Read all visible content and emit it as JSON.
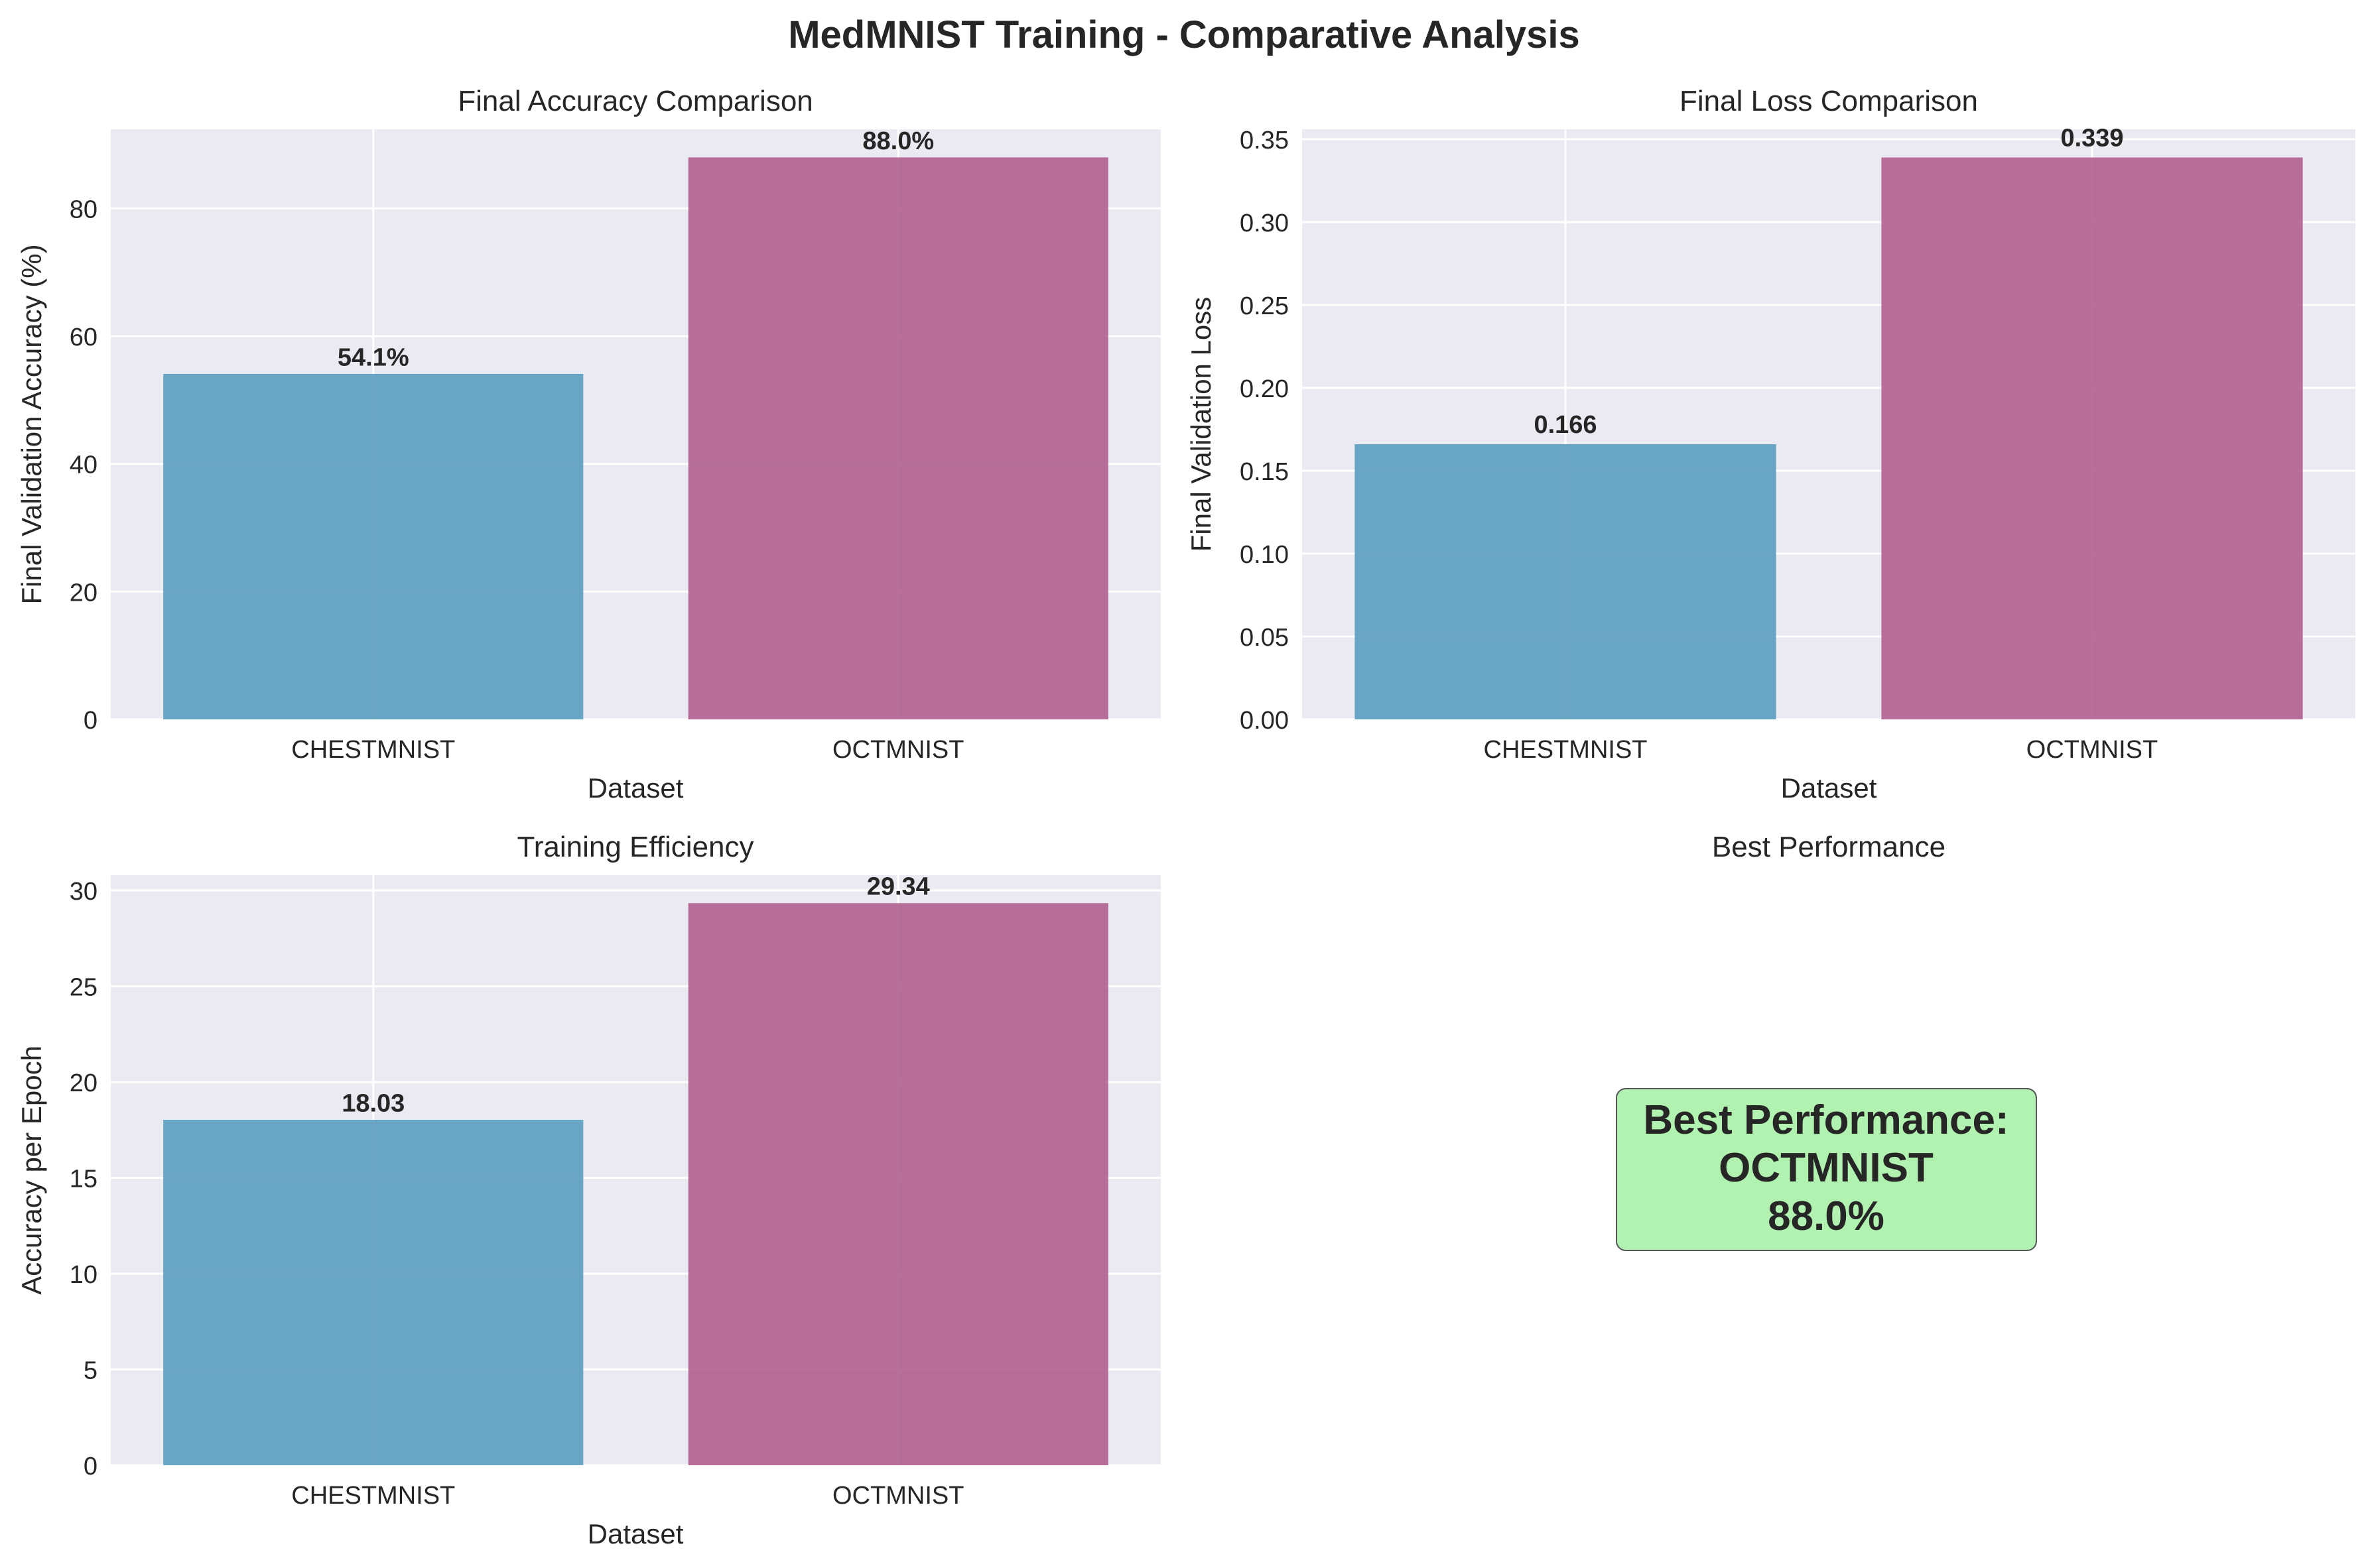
{
  "figure": {
    "title": "MedMNIST Training - Comparative Analysis"
  },
  "colors": {
    "panel_bg": "#EAEAF2",
    "grid": "#FFFFFF",
    "series_chestmnist": "#5B9DBF",
    "series_octmnist": "#B0608F",
    "callout_bg": "#B1F2B1",
    "callout_border": "#555555"
  },
  "chart_data": [
    {
      "type": "bar",
      "title": "Final Accuracy Comparison",
      "xlabel": "Dataset",
      "ylabel": "Final Validation Accuracy (%)",
      "categories": [
        "CHESTMNIST",
        "OCTMNIST"
      ],
      "values": [
        54.1,
        88.0
      ],
      "value_labels": [
        "54.1%",
        "88.0%"
      ],
      "ylim": [
        0,
        92.4
      ],
      "yticks": [
        0,
        20,
        40,
        60,
        80
      ],
      "ytick_labels": [
        "0",
        "20",
        "40",
        "60",
        "80"
      ],
      "grid": true
    },
    {
      "type": "bar",
      "title": "Final Loss Comparison",
      "xlabel": "Dataset",
      "ylabel": "Final Validation Loss",
      "categories": [
        "CHESTMNIST",
        "OCTMNIST"
      ],
      "values": [
        0.166,
        0.339
      ],
      "value_labels": [
        "0.166",
        "0.339"
      ],
      "ylim": [
        0,
        0.356
      ],
      "yticks": [
        0,
        0.05,
        0.1,
        0.15,
        0.2,
        0.25,
        0.3,
        0.35
      ],
      "ytick_labels": [
        "0.00",
        "0.05",
        "0.10",
        "0.15",
        "0.20",
        "0.25",
        "0.30",
        "0.35"
      ],
      "grid": true
    },
    {
      "type": "bar",
      "title": "Training Efficiency",
      "xlabel": "Dataset",
      "ylabel": "Accuracy per Epoch",
      "categories": [
        "CHESTMNIST",
        "OCTMNIST"
      ],
      "values": [
        18.03,
        29.34
      ],
      "value_labels": [
        "18.03",
        "29.34"
      ],
      "ylim": [
        0,
        30.8
      ],
      "yticks": [
        0,
        5,
        10,
        15,
        20,
        25,
        30
      ],
      "ytick_labels": [
        "0",
        "5",
        "10",
        "15",
        "20",
        "25",
        "30"
      ],
      "grid": true
    }
  ],
  "best_panel": {
    "title": "Best Performance",
    "callout": {
      "line1": "Best Performance:",
      "line2": "OCTMNIST",
      "line3": "88.0%"
    }
  }
}
